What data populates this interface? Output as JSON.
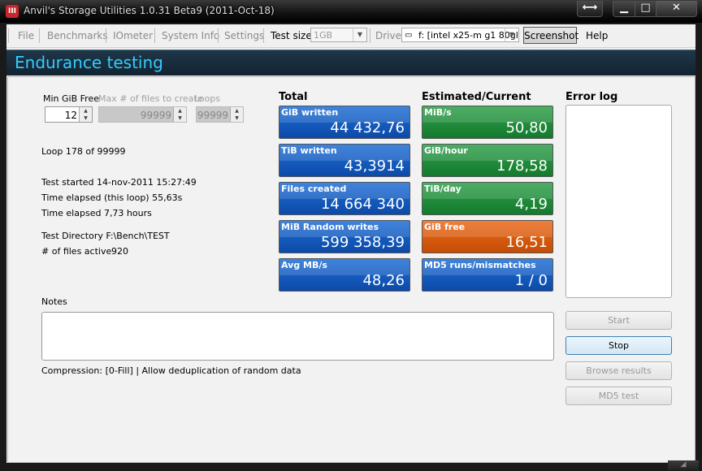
{
  "window": {
    "title": "Anvil's Storage Utilities 1.0.31 Beta9 (2011-Oct-18)",
    "app_icon_text": "III"
  },
  "menu": {
    "file": "File",
    "benchmarks": "Benchmarks",
    "iometer": "IOmeter",
    "system_info": "System Info",
    "settings": "Settings",
    "test_size_label": "Test size",
    "test_size_value": "1GB",
    "drive_label": "Drive",
    "drive_value": "f: [intel x25-m g1 80gl",
    "screenshot": "Screenshot",
    "help": "Help"
  },
  "header": {
    "title": "Endurance testing"
  },
  "params": {
    "min_gib_free_label": "Min GiB Free",
    "min_gib_free_value": "12",
    "max_files_label": "Max # of files to create",
    "max_files_value": "99999",
    "loops_label": "Loops",
    "loops_value": "99999"
  },
  "info": {
    "loop": "Loop 178 of 99999",
    "test_started": "Test started 14-nov-2011 15:27:49",
    "elapsed_loop": "Time elapsed (this loop) 55,63s",
    "elapsed_total": "Time elapsed 7,73 hours",
    "test_directory": "Test Directory F:\\Bench\\TEST",
    "files_active_label": "# of files active",
    "files_active_value": "920"
  },
  "total": {
    "heading": "Total",
    "tiles": [
      {
        "label": "GiB written",
        "value": "44 432,76"
      },
      {
        "label": "TiB written",
        "value": "43,3914"
      },
      {
        "label": "Files created",
        "value": "14 664 340"
      },
      {
        "label": "MiB Random writes",
        "value": "599 358,39"
      },
      {
        "label": "Avg MB/s",
        "value": "48,26"
      }
    ]
  },
  "estimated": {
    "heading": "Estimated/Current",
    "tiles": [
      {
        "label": "MiB/s",
        "value": "50,80"
      },
      {
        "label": "GiB/hour",
        "value": "178,58"
      },
      {
        "label": "TiB/day",
        "value": "4,19"
      },
      {
        "label": "GiB free",
        "value": "16,51"
      },
      {
        "label": "MD5 runs/mismatches",
        "value": "1 / 0"
      }
    ]
  },
  "error_log": {
    "heading": "Error log"
  },
  "notes": {
    "label": "Notes"
  },
  "compression": "Compression: [0-Fill] | Allow deduplication of random data",
  "buttons": {
    "start": "Start",
    "stop": "Stop",
    "browse_results": "Browse results",
    "md5_test": "MD5 test"
  },
  "colors": {
    "header_text": "#33ccff",
    "tile_blue": "#0c4aa8",
    "tile_green": "#157a2e",
    "tile_orange": "#c44d05"
  }
}
